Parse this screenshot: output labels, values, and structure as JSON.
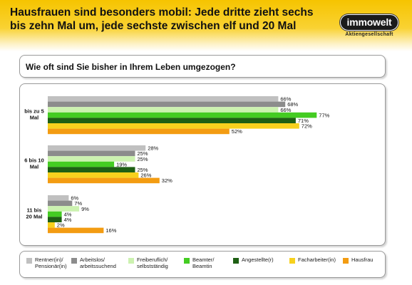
{
  "header": {
    "headline": "Hausfrauen sind besonders mobil: Jede dritte zieht sechs bis zehn Mal um, jede sechste zwischen elf und 20 Mal",
    "logo_text": "immowelt",
    "logo_subtitle": "Aktiengesellschaft"
  },
  "question": "Wie oft sind Sie bisher in Ihrem Leben umgezogen?",
  "chart_data": {
    "type": "bar",
    "orientation": "horizontal",
    "unit": "%",
    "xlim": [
      0,
      100
    ],
    "grid": false,
    "legend_position": "bottom",
    "categories": [
      "bis zu 5\nMal",
      "6 bis 10\nMal",
      "11 bis\n20 Mal"
    ],
    "series": [
      {
        "name": "Rentner(in)/\nPensionär(in)",
        "color": "#c0c0c0",
        "values": [
          66,
          28,
          6
        ]
      },
      {
        "name": "Arbeitslos/\narbeitssuchend",
        "color": "#8c8c8c",
        "values": [
          68,
          25,
          7
        ]
      },
      {
        "name": "Freiberuflich/\nselbstständig",
        "color": "#ccf2b0",
        "values": [
          66,
          25,
          9
        ]
      },
      {
        "name": "Beamter/\nBeamtin",
        "color": "#44cc22",
        "values": [
          77,
          19,
          4
        ]
      },
      {
        "name": "Angestellte(r)",
        "color": "#1e5f14",
        "values": [
          71,
          25,
          4
        ]
      },
      {
        "name": "Facharbeiter(in)",
        "color": "#f7d11e",
        "values": [
          72,
          26,
          2
        ]
      },
      {
        "name": "Hausfrau",
        "color": "#f39c12",
        "values": [
          52,
          32,
          16
        ]
      }
    ]
  }
}
